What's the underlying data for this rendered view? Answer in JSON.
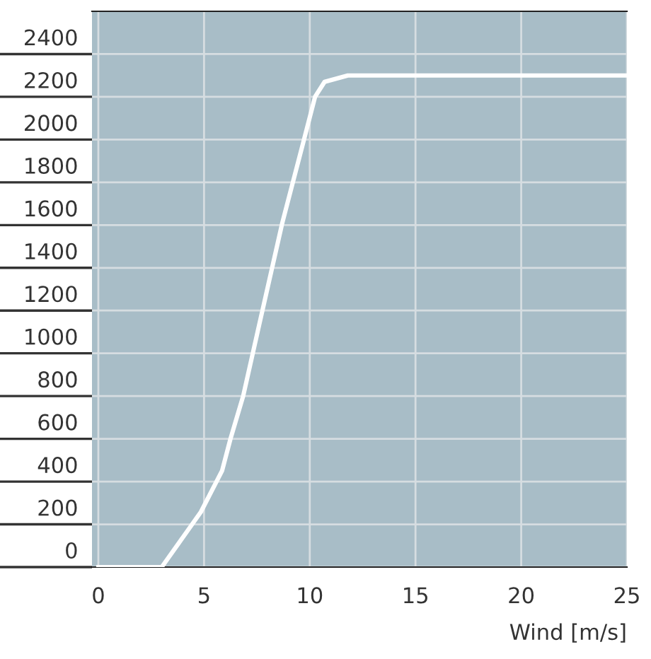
{
  "chart_data": {
    "type": "line",
    "xlabel": "Wind [m/s]",
    "series": [
      {
        "color": "#ffffff",
        "x": [
          0,
          3,
          4.85,
          5.85,
          6.25,
          6.85,
          7.6,
          8.7,
          9.7,
          10.25,
          10.7,
          11.8,
          25
        ],
        "values": [
          0,
          0,
          258,
          450,
          600,
          800,
          1130,
          1610,
          1990,
          2200,
          2270,
          2300,
          2300
        ]
      }
    ],
    "xlim": [
      -0.3,
      25
    ],
    "ylim": [
      0,
      2600
    ],
    "xticks": [
      0,
      5,
      10,
      15,
      20,
      25
    ],
    "yticks": [
      0,
      200,
      400,
      600,
      800,
      1000,
      1200,
      1400,
      1600,
      1800,
      2000,
      2200,
      2400
    ],
    "grid": true,
    "marker": "none",
    "line_style": "solid"
  }
}
